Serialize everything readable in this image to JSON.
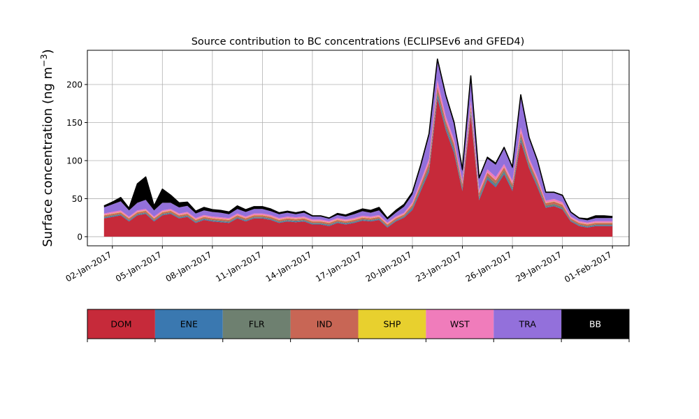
{
  "chart_data": {
    "type": "area",
    "stacked": true,
    "title": "Source contribution to BC concentrations (ECLIPSEv6 and GFED4)",
    "ylabel": "Surface concentration (ng m",
    "ylabel_exponent": "−3",
    "ylabel_suffix": ")",
    "xlim": [
      "2016-12-31T12:00",
      "2017-02-02T00:00"
    ],
    "ylim": [
      -12,
      245
    ],
    "grid": true,
    "xticks": [
      "2017-01-02",
      "2017-01-05",
      "2017-01-08",
      "2017-01-11",
      "2017-01-14",
      "2017-01-17",
      "2017-01-20",
      "2017-01-23",
      "2017-01-26",
      "2017-01-29",
      "2017-02-01"
    ],
    "xtick_labels": [
      "02-Jan-2017",
      "05-Jan-2017",
      "08-Jan-2017",
      "11-Jan-2017",
      "14-Jan-2017",
      "17-Jan-2017",
      "20-Jan-2017",
      "23-Jan-2017",
      "26-Jan-2017",
      "29-Jan-2017",
      "01-Feb-2017"
    ],
    "yticks": [
      0,
      50,
      100,
      150,
      200
    ],
    "ytick_labels": [
      "0",
      "50",
      "100",
      "150",
      "200"
    ],
    "series_names": [
      "DOM",
      "ENE",
      "FLR",
      "IND",
      "SHP",
      "WST",
      "TRA",
      "BB"
    ],
    "series_colors": {
      "DOM": "#c62a3a",
      "ENE": "#3a78b0",
      "FLR": "#6e8070",
      "IND": "#c86655",
      "SHP": "#e8d02e",
      "WST": "#f07cbb",
      "TRA": "#9370db",
      "BB": "#000000"
    },
    "x": [
      "2017-01-01T12:00",
      "2017-01-02T00:00",
      "2017-01-02T12:00",
      "2017-01-03T00:00",
      "2017-01-03T12:00",
      "2017-01-04T00:00",
      "2017-01-04T12:00",
      "2017-01-05T00:00",
      "2017-01-05T12:00",
      "2017-01-06T00:00",
      "2017-01-06T12:00",
      "2017-01-07T00:00",
      "2017-01-07T12:00",
      "2017-01-08T00:00",
      "2017-01-08T12:00",
      "2017-01-09T00:00",
      "2017-01-09T12:00",
      "2017-01-10T00:00",
      "2017-01-10T12:00",
      "2017-01-11T00:00",
      "2017-01-11T12:00",
      "2017-01-12T00:00",
      "2017-01-12T12:00",
      "2017-01-13T00:00",
      "2017-01-13T12:00",
      "2017-01-14T00:00",
      "2017-01-14T12:00",
      "2017-01-15T00:00",
      "2017-01-15T12:00",
      "2017-01-16T00:00",
      "2017-01-16T12:00",
      "2017-01-17T00:00",
      "2017-01-17T12:00",
      "2017-01-18T00:00",
      "2017-01-18T12:00",
      "2017-01-19T00:00",
      "2017-01-19T12:00",
      "2017-01-20T00:00",
      "2017-01-20T12:00",
      "2017-01-21T00:00",
      "2017-01-21T12:00",
      "2017-01-22T00:00",
      "2017-01-22T12:00",
      "2017-01-23T00:00",
      "2017-01-23T12:00",
      "2017-01-24T00:00",
      "2017-01-24T12:00",
      "2017-01-25T00:00",
      "2017-01-25T12:00",
      "2017-01-26T00:00",
      "2017-01-26T12:00",
      "2017-01-27T00:00",
      "2017-01-27T12:00",
      "2017-01-28T00:00",
      "2017-01-28T12:00",
      "2017-01-29T00:00",
      "2017-01-29T12:00",
      "2017-01-30T00:00",
      "2017-01-30T12:00",
      "2017-01-31T00:00",
      "2017-01-31T12:00",
      "2017-02-01T00:00"
    ],
    "series": [
      {
        "name": "DOM",
        "values": [
          24,
          26,
          28,
          20,
          28,
          30,
          20,
          28,
          30,
          24,
          26,
          18,
          22,
          20,
          19,
          18,
          24,
          20,
          24,
          24,
          22,
          18,
          20,
          19,
          20,
          16,
          16,
          14,
          18,
          16,
          18,
          21,
          20,
          22,
          12,
          20,
          25,
          35,
          60,
          85,
          182,
          140,
          110,
          60,
          160,
          48,
          75,
          65,
          82,
          60,
          125,
          90,
          65,
          38,
          40,
          36,
          20,
          14,
          12,
          14,
          14,
          14
        ]
      },
      {
        "name": "ENE",
        "values": [
          1,
          1,
          1,
          1,
          1,
          1,
          1,
          1,
          1,
          1,
          1,
          1,
          1,
          1,
          1,
          1,
          1,
          1,
          1,
          1,
          1,
          1,
          1,
          1,
          1,
          1,
          1,
          1,
          1,
          1,
          1,
          1,
          1,
          1,
          1,
          1,
          1,
          2,
          2,
          3,
          4,
          3,
          3,
          2,
          3,
          2,
          2,
          2,
          2,
          2,
          3,
          2,
          2,
          1,
          1,
          1,
          1,
          1,
          1,
          1,
          1,
          1
        ]
      },
      {
        "name": "FLR",
        "values": [
          1,
          1,
          1,
          1,
          1,
          1,
          1,
          1,
          1,
          1,
          1,
          1,
          1,
          1,
          1,
          1,
          1,
          1,
          1,
          1,
          1,
          1,
          1,
          1,
          1,
          1,
          1,
          1,
          1,
          1,
          1,
          1,
          1,
          1,
          1,
          1,
          1,
          2,
          3,
          4,
          5,
          4,
          4,
          3,
          4,
          3,
          3,
          3,
          3,
          3,
          4,
          3,
          3,
          2,
          2,
          2,
          1,
          1,
          1,
          1,
          1,
          1
        ]
      },
      {
        "name": "IND",
        "values": [
          2,
          2,
          2,
          2,
          2,
          2,
          2,
          2,
          2,
          2,
          2,
          2,
          2,
          2,
          2,
          2,
          2,
          2,
          2,
          2,
          2,
          2,
          2,
          2,
          2,
          2,
          2,
          2,
          2,
          2,
          2,
          2,
          2,
          2,
          2,
          2,
          2,
          3,
          4,
          5,
          6,
          5,
          5,
          4,
          5,
          4,
          4,
          4,
          4,
          4,
          5,
          4,
          4,
          3,
          3,
          3,
          2,
          2,
          2,
          2,
          2,
          2
        ]
      },
      {
        "name": "SHP",
        "values": [
          0.5,
          0.5,
          0.5,
          0.5,
          0.5,
          0.5,
          0.5,
          0.5,
          0.5,
          0.5,
          0.5,
          0.5,
          0.5,
          0.5,
          0.5,
          0.5,
          0.5,
          0.5,
          0.5,
          0.5,
          0.5,
          0.5,
          0.5,
          0.5,
          0.5,
          0.5,
          0.5,
          0.5,
          0.5,
          0.5,
          0.5,
          0.5,
          0.5,
          0.5,
          0.5,
          0.5,
          0.5,
          0.5,
          0.5,
          0.5,
          0.5,
          0.5,
          0.5,
          0.5,
          0.5,
          0.5,
          0.5,
          0.5,
          0.5,
          0.5,
          0.5,
          0.5,
          0.5,
          0.5,
          0.5,
          0.5,
          0.5,
          0.5,
          0.5,
          0.5,
          0.5,
          0.5
        ]
      },
      {
        "name": "WST",
        "values": [
          2,
          2,
          2,
          2,
          2,
          2,
          2,
          2,
          2,
          2,
          2,
          2,
          2,
          2,
          2,
          2,
          2,
          2,
          2,
          2,
          2,
          2,
          2,
          2,
          2,
          2,
          2,
          2,
          2,
          2,
          2,
          2,
          2,
          2,
          2,
          2,
          2,
          3,
          4,
          5,
          8,
          6,
          5,
          4,
          6,
          4,
          4,
          4,
          4,
          4,
          6,
          4,
          4,
          3,
          3,
          3,
          2,
          2,
          2,
          2,
          2,
          2
        ]
      },
      {
        "name": "TRA",
        "values": [
          8,
          10,
          12,
          8,
          10,
          12,
          8,
          10,
          8,
          8,
          8,
          6,
          6,
          6,
          6,
          5,
          6,
          6,
          6,
          6,
          5,
          5,
          5,
          4,
          5,
          4,
          4,
          3,
          4,
          4,
          5,
          6,
          5,
          6,
          4,
          5,
          8,
          10,
          18,
          30,
          25,
          25,
          20,
          12,
          30,
          14,
          14,
          16,
          20,
          16,
          40,
          25,
          20,
          10,
          8,
          8,
          5,
          3,
          3,
          4,
          4,
          4
        ]
      },
      {
        "name": "BB",
        "values": [
          2,
          3,
          5,
          3,
          25,
          30,
          6,
          18,
          10,
          6,
          5,
          3,
          4,
          3,
          3,
          3,
          4,
          3,
          3,
          3,
          3,
          2,
          2,
          2,
          2,
          1,
          1,
          1,
          2,
          2,
          3,
          3,
          3,
          4,
          2,
          3,
          3,
          3,
          3,
          3,
          3,
          3,
          3,
          3,
          3,
          2,
          2,
          2,
          2,
          2,
          3,
          2,
          2,
          1,
          1,
          1,
          1,
          1,
          2,
          3,
          3,
          2
        ]
      }
    ]
  },
  "legend": {
    "items": [
      "DOM",
      "ENE",
      "FLR",
      "IND",
      "SHP",
      "WST",
      "TRA",
      "BB"
    ],
    "text_colors": [
      "#000000",
      "#000000",
      "#000000",
      "#000000",
      "#000000",
      "#000000",
      "#000000",
      "#ffffff"
    ]
  }
}
